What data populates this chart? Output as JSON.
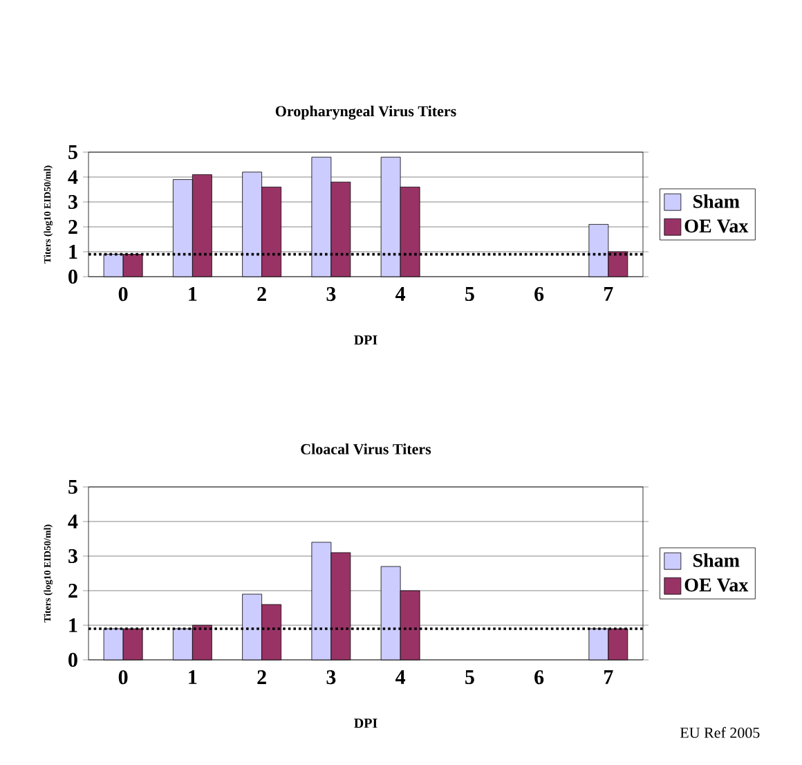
{
  "chart_data": [
    {
      "type": "bar",
      "title": "Oropharyngeal Virus Titers",
      "xlabel": "DPI",
      "ylabel": "Titers (log10 EID50/ml)",
      "categories": [
        "0",
        "1",
        "2",
        "3",
        "4",
        "5",
        "6",
        "7"
      ],
      "ylim": [
        0,
        5
      ],
      "yticks": [
        0,
        1,
        2,
        3,
        4,
        5
      ],
      "grid": "y",
      "legend": "right",
      "series": [
        {
          "name": "Sham",
          "color": "#ccccff",
          "values": [
            0.9,
            3.9,
            4.2,
            4.8,
            4.8,
            null,
            null,
            2.1
          ]
        },
        {
          "name": "OE Vax",
          "color": "#993366",
          "values": [
            0.9,
            4.1,
            3.6,
            3.8,
            3.6,
            null,
            null,
            1.0
          ]
        }
      ],
      "ref_lines": [
        {
          "axis": "y",
          "value": 0.9,
          "color": "#000000",
          "line_style": "dotted"
        }
      ]
    },
    {
      "type": "bar",
      "title": "Cloacal Virus Titers",
      "xlabel": "DPI",
      "ylabel": "Titers (log10 EID50/ml)",
      "categories": [
        "0",
        "1",
        "2",
        "3",
        "4",
        "5",
        "6",
        "7"
      ],
      "ylim": [
        0,
        5
      ],
      "yticks": [
        0,
        1,
        2,
        3,
        4,
        5
      ],
      "grid": "y",
      "legend": "right",
      "series": [
        {
          "name": "Sham",
          "color": "#ccccff",
          "values": [
            0.9,
            0.9,
            1.9,
            3.4,
            2.7,
            null,
            null,
            0.9
          ]
        },
        {
          "name": "OE Vax",
          "color": "#993366",
          "values": [
            0.9,
            1.0,
            1.6,
            3.1,
            2.0,
            null,
            null,
            0.9
          ]
        }
      ],
      "ref_lines": [
        {
          "axis": "y",
          "value": 0.9,
          "color": "#000000",
          "line_style": "dotted"
        }
      ],
      "annotations": [
        "EU Ref 2005"
      ]
    }
  ]
}
